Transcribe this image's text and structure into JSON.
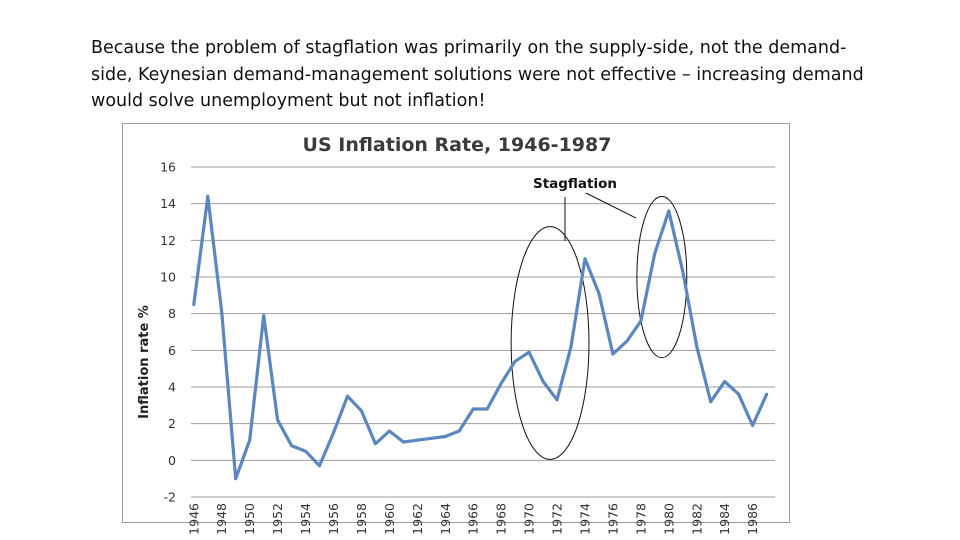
{
  "caption": {
    "line1": "Because the problem of stagflation was primarily on the supply-side, not the demand-",
    "line2": "side, Keynesian demand-management solutions were not effective – increasing demand",
    "line3": "would solve unemployment but not inflation!"
  },
  "colors": {
    "series": "#5b87be",
    "grid": "#9e9e9e",
    "annotation": "#111111"
  },
  "chart_data": {
    "type": "line",
    "title": "US Inflation Rate, 1946-1987",
    "xlabel": "",
    "ylabel": "Inflation rate %",
    "ylim": [
      -2,
      16
    ],
    "yticks": [
      -2,
      0,
      2,
      4,
      6,
      8,
      10,
      12,
      14,
      16
    ],
    "xticks": [
      1946,
      1948,
      1950,
      1952,
      1954,
      1956,
      1958,
      1960,
      1962,
      1964,
      1966,
      1968,
      1970,
      1972,
      1974,
      1976,
      1978,
      1980,
      1982,
      1984,
      1986
    ],
    "grid": true,
    "annotation": {
      "text": "Stagflation",
      "highlighted_periods": [
        [
          1969,
          1974
        ],
        [
          1978,
          1981
        ]
      ]
    },
    "series": [
      {
        "name": "US Inflation Rate",
        "x": [
          1946,
          1947,
          1948,
          1949,
          1950,
          1951,
          1952,
          1953,
          1954,
          1955,
          1956,
          1957,
          1958,
          1959,
          1960,
          1961,
          1962,
          1963,
          1964,
          1965,
          1966,
          1967,
          1968,
          1969,
          1970,
          1971,
          1972,
          1973,
          1974,
          1975,
          1976,
          1977,
          1978,
          1979,
          1980,
          1981,
          1982,
          1983,
          1984,
          1985,
          1986,
          1987
        ],
        "values": [
          8.5,
          14.4,
          8.1,
          -1.0,
          1.1,
          7.9,
          2.2,
          0.8,
          0.5,
          -0.3,
          1.5,
          3.5,
          2.7,
          0.9,
          1.6,
          1.0,
          1.1,
          1.2,
          1.3,
          1.6,
          2.8,
          2.8,
          4.2,
          5.4,
          5.9,
          4.3,
          3.3,
          6.2,
          11.0,
          9.1,
          5.8,
          6.5,
          7.6,
          11.3,
          13.6,
          10.3,
          6.2,
          3.2,
          4.3,
          3.6,
          1.9,
          3.6
        ]
      }
    ]
  }
}
